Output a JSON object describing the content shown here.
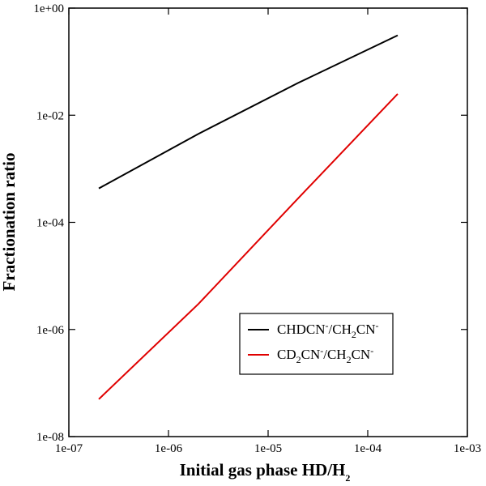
{
  "chart_data": {
    "type": "line",
    "xlabel": "Initial gas phase HD/H",
    "xlabel_sub": "2",
    "ylabel": "Fractionation ratio",
    "x_scale": "log",
    "y_scale": "log",
    "xlim": [
      1e-07,
      0.001
    ],
    "ylim": [
      1e-08,
      1
    ],
    "x_ticks": [
      {
        "value": 1e-07,
        "label": "1e-07"
      },
      {
        "value": 1e-06,
        "label": "1e-06"
      },
      {
        "value": 1e-05,
        "label": "1e-05"
      },
      {
        "value": 0.0001,
        "label": "1e-04"
      },
      {
        "value": 0.001,
        "label": "1e-03"
      }
    ],
    "y_ticks": [
      {
        "value": 1e-08,
        "label": "1e-08"
      },
      {
        "value": 1e-06,
        "label": "1e-06"
      },
      {
        "value": 0.0001,
        "label": "1e-04"
      },
      {
        "value": 0.01,
        "label": "1e-02"
      },
      {
        "value": 1,
        "label": "1e+00"
      }
    ],
    "grid": false,
    "legend_position": "lower-right",
    "series": [
      {
        "name": "CHDCN-/CH2CN-",
        "color": "#000000",
        "x": [
          2e-07,
          2e-06,
          2e-05,
          0.0002
        ],
        "y": [
          0.00043,
          0.0045,
          0.04,
          0.31
        ]
      },
      {
        "name": "CD2CN-/CH2CN-",
        "color": "#e00000",
        "x": [
          2e-07,
          2e-06,
          2e-05,
          0.0002
        ],
        "y": [
          5e-08,
          3e-06,
          0.00028,
          0.025
        ]
      }
    ]
  }
}
